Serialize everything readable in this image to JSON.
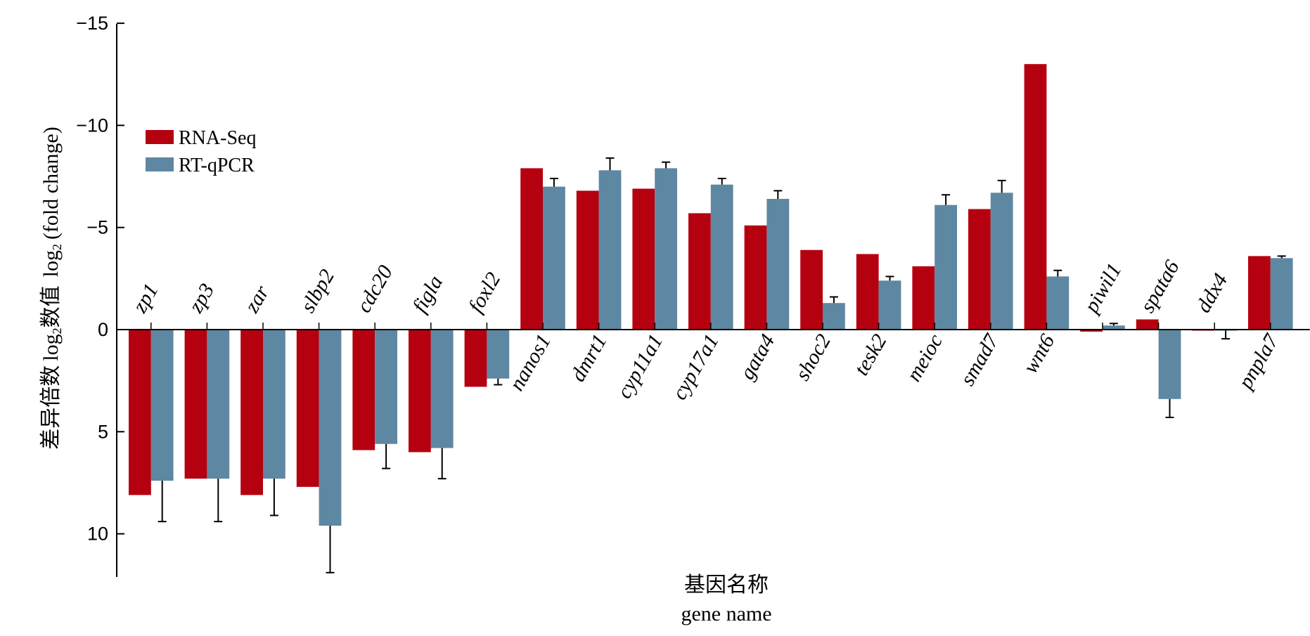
{
  "chart_data": {
    "type": "bar",
    "ylabel_cn": "差异倍数",
    "ylabel_log": "log",
    "ylabel_sub": "2",
    "ylabel_cn2": "数值",
    "ylabel_log2": "log",
    "ylabel_sub2": "2",
    "ylabel_tail": "(fold change)",
    "xlabel_cn": "基因名称",
    "xlabel_en": "gene name",
    "ylim": [
      -15,
      12
    ],
    "y_inverted": true,
    "yticks": [
      -15,
      -10,
      -5,
      0,
      5,
      10
    ],
    "ytick_labels": [
      "−15",
      "−10",
      "−5",
      "0",
      "5",
      "10"
    ],
    "legend": "top-left",
    "categories": [
      "zp1",
      "zp3",
      "zar",
      "slbp2",
      "cdc20",
      "figla",
      "foxl2",
      "nanos1",
      "dmrt1",
      "cyp11a1",
      "cyp17a1",
      "gata4",
      "shoc2",
      "tesk2",
      "meioc",
      "smad7",
      "wnt6",
      "piwil1",
      "spata6",
      "ddx4",
      "pnpla7"
    ],
    "series": [
      {
        "name": "RNA-Seq",
        "color": "#b5000f",
        "values": [
          8.1,
          7.3,
          8.1,
          7.7,
          5.9,
          6.0,
          2.8,
          -7.9,
          -6.8,
          -6.9,
          -5.7,
          -5.1,
          -3.9,
          -3.7,
          -3.1,
          -5.9,
          -13.0,
          0.1,
          -0.5,
          0.0,
          -3.6
        ]
      },
      {
        "name": "RT-qPCR",
        "color": "#5e87a2",
        "values": [
          7.4,
          7.3,
          7.3,
          9.6,
          5.6,
          5.8,
          2.4,
          -7.0,
          -7.8,
          -7.9,
          -7.1,
          -6.4,
          -1.3,
          -2.4,
          -6.1,
          -6.7,
          -2.6,
          -0.2,
          3.4,
          0.05,
          -3.5
        ],
        "errors": [
          2.0,
          2.1,
          1.8,
          2.3,
          1.2,
          1.5,
          0.3,
          0.4,
          0.6,
          0.3,
          0.3,
          0.4,
          0.3,
          0.2,
          0.5,
          0.6,
          0.3,
          0.1,
          0.9,
          0.4,
          0.1
        ]
      }
    ]
  }
}
